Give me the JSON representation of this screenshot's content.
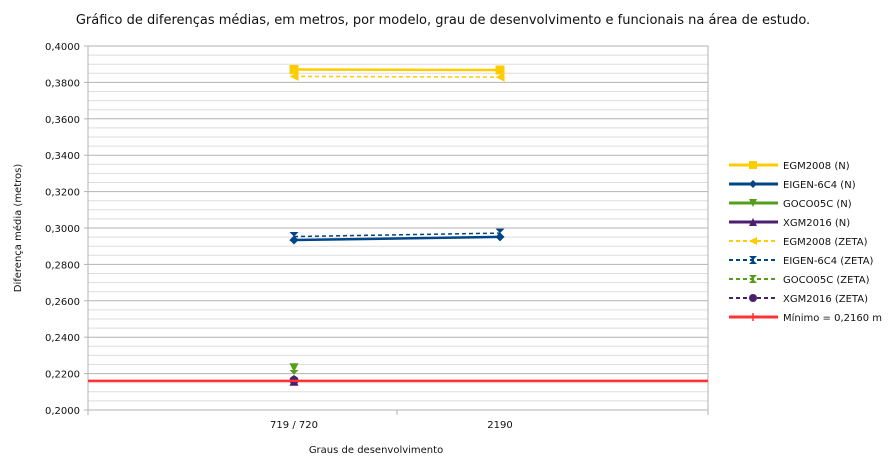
{
  "chart_data": {
    "type": "line",
    "title": "Gráfico de diferenças médias, em metros, por modelo, grau de desenvolvimento e funcionais na área de estudo.",
    "xlabel": "Graus de desenvolvimento",
    "ylabel": "Diferença média (metros)",
    "categories": [
      "719 / 720",
      "2190"
    ],
    "ylim": [
      0.2,
      0.4
    ],
    "yticks": [
      "0,2000",
      "0,2200",
      "0,2400",
      "0,2600",
      "0,2800",
      "0,3000",
      "0,3200",
      "0,3400",
      "0,3600",
      "0,3800",
      "0,4000"
    ],
    "grid": true,
    "legend_position": "right",
    "series": [
      {
        "name": "EGM2008 (N)",
        "values": [
          0.3871,
          0.3868
        ],
        "color": "#ffcc00",
        "dash": "solid",
        "marker": "square"
      },
      {
        "name": "EIGEN-6C4 (N)",
        "values": [
          0.2934,
          0.2951
        ],
        "color": "#004586",
        "dash": "solid",
        "marker": "diamond"
      },
      {
        "name": "GOCO05C (N)",
        "values": [
          0.2232,
          null
        ],
        "color": "#579d1c",
        "dash": "solid",
        "marker": "triangle-down"
      },
      {
        "name": "XGM2016 (N)",
        "values": [
          0.2158,
          null
        ],
        "color": "#4b1f6f",
        "dash": "solid",
        "marker": "triangle-up"
      },
      {
        "name": "EGM2008 (ZETA)",
        "values": [
          0.3833,
          0.3829
        ],
        "color": "#ffcc00",
        "dash": "dashed",
        "marker": "triangle-left"
      },
      {
        "name": "EIGEN-6C4 (ZETA)",
        "values": [
          0.2953,
          0.2972
        ],
        "color": "#004586",
        "dash": "dashed",
        "marker": "bowtie"
      },
      {
        "name": "GOCO05C (ZETA)",
        "values": [
          0.2195,
          null
        ],
        "color": "#579d1c",
        "dash": "dashed",
        "marker": "hourglass"
      },
      {
        "name": "XGM2016 (ZETA)",
        "values": [
          0.2163,
          null
        ],
        "color": "#4b1f6f",
        "dash": "dashed",
        "marker": "circle"
      },
      {
        "name": "Mínimo = 0,2160 m",
        "values": [
          0.216,
          0.216
        ],
        "color": "#ff3333",
        "dash": "solid",
        "marker": "plus",
        "full_width": true
      }
    ]
  }
}
